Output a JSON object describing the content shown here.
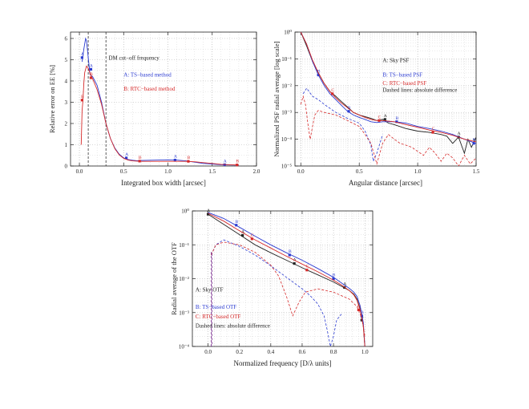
{
  "chart_data": [
    {
      "type": "line",
      "xlabel": "Integrated box width [arcsec]",
      "ylabel": "Relative error on EE [%]",
      "xlim": [
        -0.1,
        2.0
      ],
      "ylim": [
        0,
        6.3
      ],
      "xticks": [
        0.0,
        0.5,
        1.0,
        1.5,
        2.0
      ],
      "xtick_labels": [
        "0.0",
        "0.5",
        "1.0",
        "1.5",
        "2.0"
      ],
      "yticks": [
        0,
        1,
        2,
        3,
        4,
        5,
        6
      ],
      "ytick_labels": [
        "0",
        "1",
        "2",
        "3",
        "4",
        "5",
        "6"
      ],
      "y_scale": "linear",
      "grid": true,
      "vlines": [
        {
          "x": 0.1,
          "style": "dashed"
        },
        {
          "x": 0.3,
          "style": "dashed"
        }
      ],
      "annotations": [
        {
          "text": "DM cut−off frequency",
          "x": 0.33,
          "y": 5.0,
          "color": "#222222"
        },
        {
          "text": "A: TS−based method",
          "x": 0.5,
          "y": 4.2,
          "color": "#2b3bd1"
        },
        {
          "text": "B: RTC−based method",
          "x": 0.5,
          "y": 3.55,
          "color": "#d62a2a"
        }
      ],
      "series": [
        {
          "color": "#2b3bd1",
          "dash": false,
          "markers": [
            {
              "label": "A",
              "x": 0.03,
              "y": 5.1
            },
            {
              "label": "A",
              "x": 0.13,
              "y": 4.55
            },
            {
              "label": "A",
              "x": 0.53,
              "y": 0.38
            },
            {
              "label": "A",
              "x": 1.08,
              "y": 0.28
            },
            {
              "label": "A",
              "x": 1.64,
              "y": 0.06
            }
          ],
          "x": [
            0.03,
            0.05,
            0.07,
            0.08,
            0.1,
            0.12,
            0.15,
            0.2,
            0.25,
            0.3,
            0.35,
            0.4,
            0.45,
            0.5,
            0.55,
            0.6,
            0.65,
            0.7,
            0.8,
            0.9,
            1.0,
            1.1,
            1.2,
            1.3,
            1.4,
            1.5,
            1.6,
            1.7,
            1.8
          ],
          "y": [
            4.9,
            5.5,
            6.0,
            5.9,
            5.1,
            4.3,
            4.2,
            3.8,
            3.0,
            2.0,
            1.3,
            0.85,
            0.55,
            0.38,
            0.3,
            0.27,
            0.25,
            0.26,
            0.27,
            0.28,
            0.29,
            0.28,
            0.24,
            0.18,
            0.12,
            0.09,
            0.06,
            0.05,
            0.04
          ]
        },
        {
          "color": "#d62a2a",
          "dash": false,
          "markers": [
            {
              "label": "B",
              "x": 0.03,
              "y": 3.1
            },
            {
              "label": "B",
              "x": 0.13,
              "y": 4.15
            },
            {
              "label": "B",
              "x": 0.68,
              "y": 0.23
            },
            {
              "label": "B",
              "x": 1.23,
              "y": 0.22
            },
            {
              "label": "B",
              "x": 1.78,
              "y": 0.05
            }
          ],
          "x": [
            0.02,
            0.03,
            0.04,
            0.05,
            0.06,
            0.08,
            0.1,
            0.12,
            0.15,
            0.2,
            0.25,
            0.3,
            0.35,
            0.4,
            0.45,
            0.5,
            0.55,
            0.6,
            0.65,
            0.7,
            0.8,
            0.9,
            1.0,
            1.1,
            1.2,
            1.3,
            1.4,
            1.5,
            1.6,
            1.7,
            1.8
          ],
          "y": [
            1.0,
            2.6,
            3.1,
            3.9,
            4.4,
            4.7,
            4.6,
            4.35,
            4.1,
            3.6,
            2.9,
            2.0,
            1.3,
            0.82,
            0.52,
            0.36,
            0.28,
            0.24,
            0.23,
            0.22,
            0.22,
            0.22,
            0.22,
            0.22,
            0.22,
            0.2,
            0.16,
            0.12,
            0.08,
            0.06,
            0.05
          ]
        }
      ]
    },
    {
      "type": "line",
      "xlabel": "Angular distance [arcsec]",
      "ylabel": "Normalized PSF radial average [log scale]",
      "xlim": [
        -0.05,
        1.5
      ],
      "ylim": [
        1e-05,
        1
      ],
      "xticks": [
        0.0,
        0.5,
        1.0,
        1.5
      ],
      "xtick_labels": [
        "0.0",
        "0.5",
        "1.0",
        "1.5"
      ],
      "yticks": [
        1,
        0.1,
        0.01,
        0.001,
        0.0001,
        1e-05
      ],
      "ytick_labels": [
        "10⁰",
        "10⁻¹",
        "10⁻²",
        "10⁻³",
        "10⁻⁴",
        "10⁻⁵"
      ],
      "y_scale": "log",
      "grid": true,
      "vlines": [],
      "annotations": [
        {
          "text": "A: Sky PSF",
          "x": 0.7,
          "y": 0.075,
          "color": "#222222"
        },
        {
          "text": "B: TS−based PSF",
          "x": 0.7,
          "y": 0.022,
          "color": "#2b3bd1"
        },
        {
          "text": "C: RTC−based PSF",
          "x": 0.7,
          "y": 0.0105,
          "color": "#d62a2a"
        },
        {
          "text": "Dashed lines: absolute difference",
          "x": 0.7,
          "y": 0.0058,
          "color": "#222222"
        }
      ],
      "series": [
        {
          "color": "#222222",
          "dash": false,
          "markers": [
            {
              "label": "A",
              "x": 0.72,
              "y": 0.00055
            },
            {
              "label": "A",
              "x": 1.35,
              "y": 0.00012
            }
          ],
          "x": [
            0.0,
            0.05,
            0.1,
            0.15,
            0.2,
            0.25,
            0.3,
            0.35,
            0.4,
            0.45,
            0.5,
            0.55,
            0.6,
            0.65,
            0.7,
            0.75,
            0.8,
            0.9,
            1.0,
            1.1,
            1.2,
            1.25,
            1.3,
            1.35,
            1.4,
            1.43,
            1.46,
            1.5
          ],
          "y": [
            1.0,
            0.3,
            0.08,
            0.03,
            0.012,
            0.006,
            0.004,
            0.0025,
            0.0016,
            0.001,
            0.0008,
            0.0007,
            0.0006,
            0.0005,
            0.00055,
            0.0004,
            0.00035,
            0.00025,
            0.0002,
            0.00018,
            0.00015,
            0.00013,
            7e-05,
            0.00012,
            3e-05,
            0.0001,
            5e-05,
            0.00012
          ]
        },
        {
          "color": "#2b3bd1",
          "dash": false,
          "markers": [
            {
              "label": "B",
              "x": 0.15,
              "y": 0.025
            },
            {
              "label": "B",
              "x": 0.41,
              "y": 0.0011
            },
            {
              "label": "B",
              "x": 0.82,
              "y": 0.00045
            },
            {
              "label": "B",
              "x": 1.48,
              "y": 7e-05
            }
          ],
          "x": [
            0.0,
            0.05,
            0.1,
            0.15,
            0.2,
            0.25,
            0.3,
            0.35,
            0.4,
            0.45,
            0.5,
            0.55,
            0.6,
            0.65,
            0.7,
            0.8,
            0.9,
            1.0,
            1.1,
            1.2,
            1.3,
            1.4,
            1.5
          ],
          "y": [
            1.0,
            0.35,
            0.08,
            0.025,
            0.01,
            0.005,
            0.003,
            0.0018,
            0.0011,
            0.0008,
            0.00065,
            0.00055,
            0.00045,
            0.00042,
            0.00045,
            0.00045,
            0.0004,
            0.0003,
            0.00025,
            0.0002,
            0.00015,
            0.0001,
            7e-05
          ]
        },
        {
          "color": "#d62a2a",
          "dash": false,
          "markers": [
            {
              "label": "C",
              "x": 0.27,
              "y": 0.005
            },
            {
              "label": "C",
              "x": 0.67,
              "y": 0.0005
            },
            {
              "label": "C",
              "x": 1.13,
              "y": 0.00018
            }
          ],
          "x": [
            0.0,
            0.05,
            0.1,
            0.15,
            0.2,
            0.25,
            0.3,
            0.35,
            0.4,
            0.45,
            0.5,
            0.55,
            0.6,
            0.65,
            0.7,
            0.8,
            0.9,
            1.0,
            1.1,
            1.2,
            1.3,
            1.4,
            1.5
          ],
          "y": [
            1.0,
            0.35,
            0.09,
            0.03,
            0.012,
            0.006,
            0.0035,
            0.0022,
            0.0015,
            0.001,
            0.0008,
            0.00065,
            0.00055,
            0.0005,
            0.0005,
            0.00045,
            0.00035,
            0.00028,
            0.00022,
            0.00018,
            0.00014,
            0.0001,
            8e-05
          ]
        },
        {
          "color": "#2b3bd1",
          "dash": true,
          "markers": [],
          "x": [
            0.02,
            0.05,
            0.1,
            0.15,
            0.2,
            0.3,
            0.4,
            0.5,
            0.55,
            0.6,
            0.62,
            0.65,
            0.7
          ],
          "y": [
            0.005,
            0.008,
            0.004,
            0.003,
            0.002,
            0.001,
            0.0006,
            0.0004,
            0.0002,
            6e-05,
            1.5e-05,
            3e-05,
            0.00015
          ]
        },
        {
          "color": "#d62a2a",
          "dash": true,
          "markers": [],
          "x": [
            0.0,
            0.02,
            0.04,
            0.06,
            0.08,
            0.1,
            0.12,
            0.15,
            0.2,
            0.3,
            0.4,
            0.5,
            0.55,
            0.6,
            0.65,
            0.7,
            0.75,
            0.8,
            0.85,
            0.9,
            0.95,
            1.0,
            1.05,
            1.1,
            1.15,
            1.2,
            1.25,
            1.3,
            1.35,
            1.4,
            1.45,
            1.5
          ],
          "y": [
            0.002,
            0.004,
            0.002,
            0.0004,
            0.0001,
            0.0003,
            0.0008,
            0.0012,
            0.001,
            0.0008,
            0.0005,
            0.0003,
            0.00015,
            7e-05,
            1.2e-05,
            7e-05,
            0.00015,
            0.0001,
            7e-05,
            6e-05,
            5e-05,
            3.5e-05,
            2.5e-05,
            5e-05,
            3e-05,
            1.5e-05,
            3e-05,
            2e-05,
            1e-05,
            2.5e-05,
            1.2e-05,
            2e-05
          ]
        }
      ]
    },
    {
      "type": "line",
      "xlabel": "Normalized frequency [D/λ units]",
      "ylabel": "Radial average of the OTF",
      "xlim": [
        -0.1,
        1.05
      ],
      "ylim": [
        0.0001,
        1
      ],
      "xticks": [
        0.0,
        0.2,
        0.4,
        0.6,
        0.8,
        1.0
      ],
      "xtick_labels": [
        "0.0",
        "0.2",
        "0.4",
        "0.6",
        "0.8",
        "1.0"
      ],
      "yticks": [
        1,
        0.1,
        0.01,
        0.001,
        0.0001
      ],
      "ytick_labels": [
        "10⁰",
        "10⁻¹",
        "10⁻²",
        "10⁻³",
        "10⁻⁴"
      ],
      "y_scale": "log",
      "grid": true,
      "vlines": [],
      "annotations": [
        {
          "text": "A: Sky OTF",
          "x": -0.08,
          "y": 0.0042,
          "color": "#222222"
        },
        {
          "text": "B: TS−based OTF",
          "x": -0.08,
          "y": 0.0013,
          "color": "#2b3bd1"
        },
        {
          "text": "C: RTC−based OTF",
          "x": -0.08,
          "y": 0.00068,
          "color": "#d62a2a"
        },
        {
          "text": "Dashed lines: absolute difference",
          "x": -0.08,
          "y": 0.00036,
          "color": "#222222"
        }
      ],
      "series": [
        {
          "color": "#222222",
          "dash": false,
          "markers": [
            {
              "label": "A",
              "x": 0.0,
              "y": 0.8
            },
            {
              "label": "A",
              "x": 0.22,
              "y": 0.19
            },
            {
              "label": "A",
              "x": 0.55,
              "y": 0.028
            },
            {
              "label": "A",
              "x": 0.87,
              "y": 0.0055
            },
            {
              "label": "A",
              "x": 0.98,
              "y": 0.0006
            }
          ],
          "x": [
            0.0,
            0.1,
            0.2,
            0.3,
            0.4,
            0.5,
            0.6,
            0.7,
            0.8,
            0.85,
            0.9,
            0.93,
            0.95,
            0.97,
            0.99,
            1.0
          ],
          "y": [
            0.8,
            0.4,
            0.2,
            0.1,
            0.058,
            0.035,
            0.021,
            0.013,
            0.008,
            0.006,
            0.0045,
            0.0035,
            0.0025,
            0.0013,
            0.0004,
            0.0001
          ]
        },
        {
          "color": "#2b3bd1",
          "dash": false,
          "markers": [
            {
              "label": "B",
              "x": 0.18,
              "y": 0.38
            },
            {
              "label": "B",
              "x": 0.52,
              "y": 0.05
            },
            {
              "label": "B",
              "x": 0.8,
              "y": 0.01
            },
            {
              "label": "B",
              "x": 0.98,
              "y": 0.0008
            }
          ],
          "x": [
            0.0,
            0.1,
            0.2,
            0.3,
            0.4,
            0.5,
            0.6,
            0.7,
            0.8,
            0.85,
            0.9,
            0.93,
            0.95,
            0.97,
            0.99,
            1.0
          ],
          "y": [
            0.9,
            0.6,
            0.33,
            0.18,
            0.1,
            0.058,
            0.035,
            0.02,
            0.011,
            0.0075,
            0.0052,
            0.004,
            0.003,
            0.0016,
            0.0005,
            0.0001
          ]
        },
        {
          "color": "#d62a2a",
          "dash": false,
          "markers": [
            {
              "label": "C",
              "x": 0.28,
              "y": 0.15
            },
            {
              "label": "C",
              "x": 0.63,
              "y": 0.018
            },
            {
              "label": "C",
              "x": 0.96,
              "y": 0.0012
            }
          ],
          "x": [
            0.0,
            0.1,
            0.2,
            0.3,
            0.4,
            0.5,
            0.6,
            0.7,
            0.8,
            0.85,
            0.9,
            0.93,
            0.95,
            0.97,
            0.99,
            1.0
          ],
          "y": [
            0.85,
            0.5,
            0.26,
            0.14,
            0.08,
            0.046,
            0.027,
            0.016,
            0.009,
            0.0065,
            0.0045,
            0.0033,
            0.0023,
            0.0012,
            0.0004,
            0.0001
          ]
        },
        {
          "color": "#2b3bd1",
          "dash": true,
          "markers": [],
          "x": [
            0.02,
            0.05,
            0.1,
            0.2,
            0.3,
            0.4,
            0.5,
            0.6,
            0.65,
            0.7,
            0.74,
            0.76,
            0.78,
            0.8,
            0.82,
            0.85
          ],
          "y": [
            0.05,
            0.1,
            0.14,
            0.09,
            0.05,
            0.024,
            0.011,
            0.005,
            0.0032,
            0.0018,
            0.0008,
            0.0003,
            0.0001,
            0.0002,
            0.0006,
            0.0009
          ]
        },
        {
          "color": "#d62a2a",
          "dash": true,
          "markers": [],
          "x": [
            0.02,
            0.05,
            0.1,
            0.2,
            0.3,
            0.4,
            0.45,
            0.5,
            0.54,
            0.58,
            0.62,
            0.7,
            0.8,
            0.9,
            0.95,
            0.98,
            1.0
          ],
          "y": [
            0.05,
            0.1,
            0.12,
            0.1,
            0.06,
            0.025,
            0.012,
            0.003,
            0.0008,
            0.002,
            0.004,
            0.005,
            0.004,
            0.0025,
            0.0015,
            0.0007,
            0.0002
          ]
        },
        {
          "color": "#7a2f8f",
          "dash": true,
          "markers": [],
          "x": [
            0.02,
            0.02,
            0.025,
            0.025
          ],
          "y": [
            0.0001,
            0.06,
            0.06,
            0.0001
          ]
        }
      ]
    }
  ]
}
